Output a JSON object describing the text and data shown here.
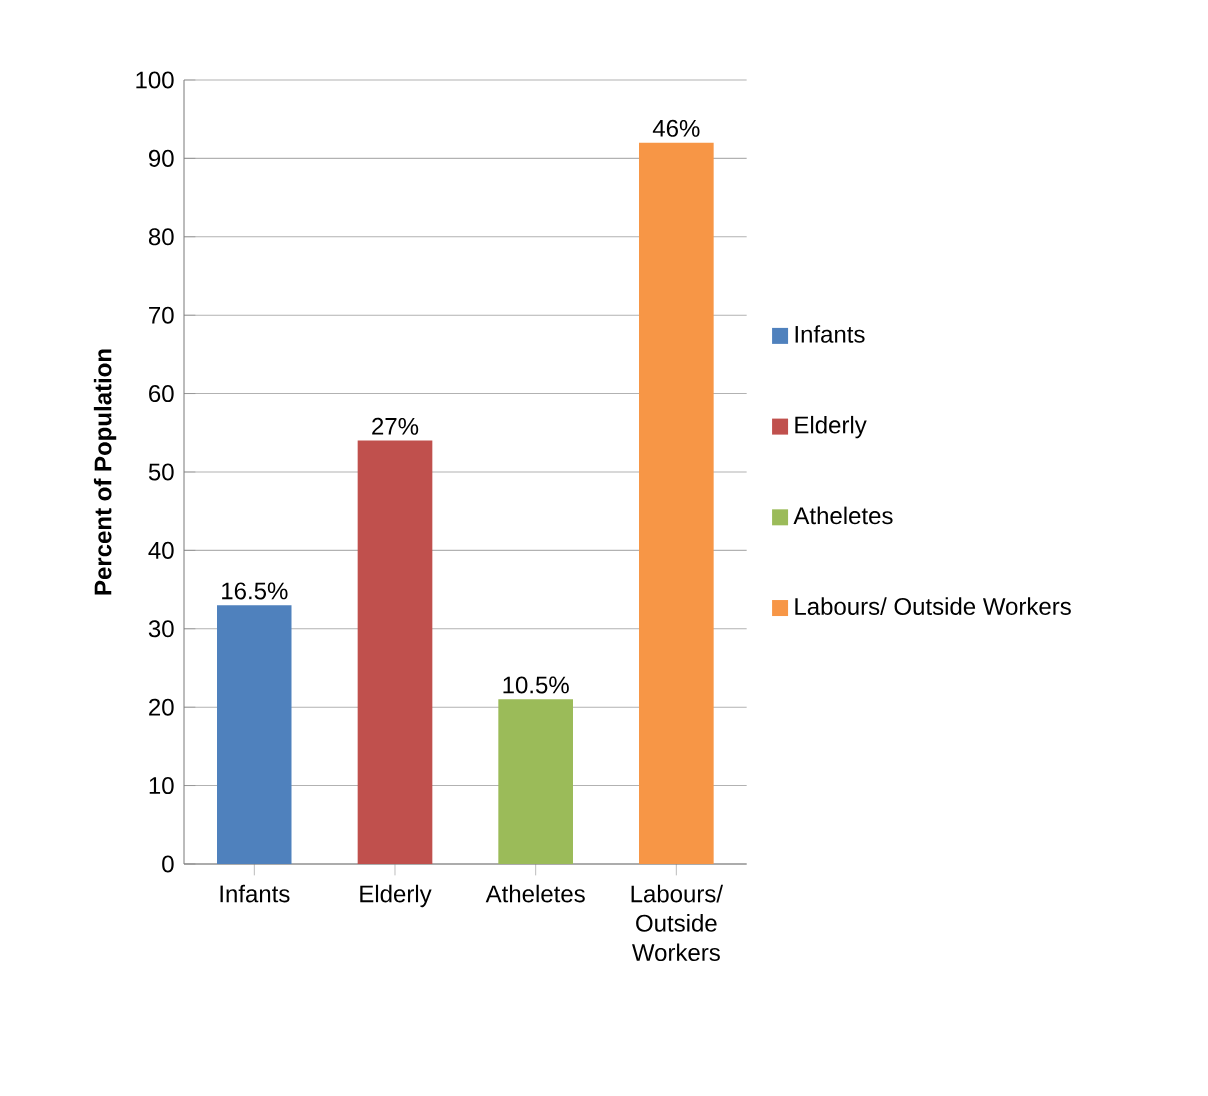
{
  "chart_data": {
    "type": "bar",
    "ylabel": "Percent of Population",
    "categories": [
      "Infants",
      "Elderly",
      "Atheletes",
      "Labours/ Outside Workers"
    ],
    "series": [
      {
        "name": "Infants",
        "color": "#4f81bd",
        "values": [
          33,
          null,
          null,
          null
        ]
      },
      {
        "name": "Elderly",
        "color": "#c0504d",
        "values": [
          null,
          54,
          null,
          null
        ]
      },
      {
        "name": "Atheletes",
        "color": "#9bbb59",
        "values": [
          null,
          null,
          21,
          null
        ]
      },
      {
        "name": "Labours/ Outside Workers",
        "color": "#f79646",
        "values": [
          null,
          null,
          null,
          92
        ]
      }
    ],
    "annotations": [
      {
        "text": "16.5%",
        "x": "Infants",
        "y": 33
      },
      {
        "text": "27%",
        "x": "Elderly",
        "y": 54
      },
      {
        "text": "10.5%",
        "x": "Atheletes",
        "y": 21
      },
      {
        "text": "46%",
        "x": "Labours/ Outside Workers",
        "y": 92
      }
    ],
    "ylim": [
      0,
      100
    ],
    "yticks": [
      0,
      10,
      20,
      30,
      40,
      50,
      60,
      70,
      80,
      90,
      100
    ],
    "grid": "y",
    "legend": "right"
  }
}
